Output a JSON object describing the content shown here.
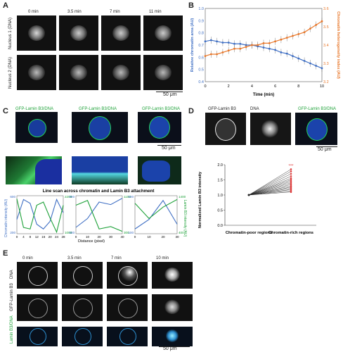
{
  "panels": {
    "a": {
      "letter": "A",
      "time_labels": [
        "0 min",
        "3.5 min",
        "7 min",
        "11 min"
      ],
      "row_labels": [
        "Nucleus 1 (DNA)",
        "Nucleus 2 (DNA)"
      ],
      "scale_bar": "50 μm"
    },
    "b": {
      "letter": "B",
      "xlabel": "Time (min)",
      "ylabel_left": "Relative chromatin area (AU)",
      "ylabel_right": "Chromatin heterogeneity index (AU)",
      "left_ticks": [
        "1.0",
        "0.9",
        "0.8",
        "0.7",
        "0.6",
        "0.5",
        "0.4"
      ],
      "right_ticks": [
        "3.6",
        "3.5",
        "3.4",
        "3.3",
        "3.2"
      ],
      "x_ticks": [
        "0",
        "2",
        "4",
        "6",
        "8",
        "10"
      ],
      "left_color": "#3f6fc4",
      "right_color": "#e8772a"
    },
    "c": {
      "letter": "C",
      "image_labels": [
        "GFP-Lamin B3/DNA",
        "GFP-Lamin B3/DNA",
        "GFP-Lamin B3/DNA"
      ],
      "scale_bar": "50 μm",
      "plot_title": "Line scan across chromatin and Lamin B3 attachment",
      "ylabel_left": "Chromatin intensity (AU)",
      "ylabel_right": "Lamin B3 intensity (AU)",
      "xlabel": "Distance (pixel)",
      "chromatin_color": "#3f6fc4",
      "lamin_color": "#1fa23a"
    },
    "d": {
      "letter": "D",
      "image_labels": [
        "GFP-Lamin B3",
        "DNA",
        "GFP-Lamin B3/DNA"
      ],
      "scale_bar": "50 μm",
      "ylabel": "Normalized Lamin B3 intensity",
      "y_ticks": [
        "2.0",
        "1.5",
        "1.0",
        "0.5",
        "0.0"
      ],
      "categories": [
        "Chromatin-poor regions",
        "Chromatin-rich regions"
      ],
      "significance": "***"
    },
    "e": {
      "letter": "E",
      "time_labels": [
        "0 min",
        "3.5 min",
        "7 min",
        "10 min"
      ],
      "row_labels": [
        "DNA",
        "GFP-Lamin B3",
        "Lamin B3/DNA"
      ],
      "scale_bar": "50 μm"
    }
  },
  "chart_data": [
    {
      "type": "line",
      "title": "",
      "xlabel": "Time (min)",
      "ylabel": "Relative chromatin area (AU)",
      "xlim": [
        0,
        10
      ],
      "ylim": [
        0.4,
        1.0
      ],
      "y2lim": [
        3.2,
        3.6
      ],
      "series": [
        {
          "name": "Relative chromatin area (AU)",
          "axis": "left",
          "x": [
            0,
            0.5,
            1,
            1.5,
            2,
            2.5,
            3,
            3.5,
            4,
            4.5,
            5,
            5.5,
            6,
            6.5,
            7,
            7.5,
            8,
            8.5,
            9,
            9.5,
            10
          ],
          "values": [
            0.73,
            0.74,
            0.73,
            0.72,
            0.72,
            0.71,
            0.71,
            0.7,
            0.7,
            0.69,
            0.68,
            0.67,
            0.66,
            0.64,
            0.63,
            0.61,
            0.59,
            0.57,
            0.55,
            0.53,
            0.51
          ]
        },
        {
          "name": "Chromatin heterogeneity index (AU)",
          "axis": "right",
          "x": [
            0,
            0.5,
            1,
            1.5,
            2,
            2.5,
            3,
            3.5,
            4,
            4.5,
            5,
            5.5,
            6,
            6.5,
            7,
            7.5,
            8,
            8.5,
            9,
            9.5,
            10
          ],
          "values": [
            3.34,
            3.35,
            3.35,
            3.36,
            3.37,
            3.38,
            3.38,
            3.39,
            3.4,
            3.4,
            3.41,
            3.41,
            3.42,
            3.43,
            3.44,
            3.45,
            3.46,
            3.47,
            3.49,
            3.51,
            3.53
          ]
        }
      ]
    },
    {
      "type": "line",
      "title": "Line scan across chromatin and Lamin B3 attachment",
      "xlabel": "Distance (pixel)",
      "panels": [
        {
          "x": [
            0,
            4,
            8,
            12,
            16,
            20,
            24,
            28
          ],
          "y2lim": [
            1000,
            2200
          ],
          "ylim": [
            200,
            600
          ],
          "series": [
            {
              "name": "Chromatin",
              "values": [
                350,
                560,
                520,
                300,
                250,
                330,
                560,
                420
              ]
            },
            {
              "name": "Lamin B3",
              "values": [
                2100,
                1200,
                1150,
                1900,
                2000,
                1500,
                1050,
                1900
              ]
            }
          ]
        },
        {
          "x": [
            0,
            10,
            20,
            30,
            40
          ],
          "ylim": [
            600,
            900
          ],
          "y2lim": [
            300,
            1100
          ],
          "series": [
            {
              "name": "Chromatin",
              "values": [
                650,
                720,
                850,
                830,
                880
              ]
            },
            {
              "name": "Lamin B3",
              "values": [
                900,
                1000,
                400,
                450,
                350
              ]
            }
          ]
        },
        {
          "x": [
            0,
            10,
            20,
            30
          ],
          "ylim": [
            100,
            500
          ],
          "y2lim": [
            400,
            1400
          ],
          "series": [
            {
              "name": "Chromatin",
              "values": [
                150,
                250,
                450,
                200
              ]
            },
            {
              "name": "Lamin B3",
              "values": [
                1200,
                800,
                1100,
                1300
              ]
            }
          ]
        }
      ]
    },
    {
      "type": "scatter",
      "title": "",
      "ylabel": "Normalized Lamin B3 intensity",
      "categories": [
        "Chromatin-poor regions",
        "Chromatin-rich regions"
      ],
      "ylim": [
        0.0,
        2.0
      ],
      "series": [
        {
          "name": "Chromatin-poor regions",
          "values": [
            1.0
          ]
        },
        {
          "name": "Chromatin-rich regions",
          "values": [
            1.85,
            1.78,
            1.7,
            1.62,
            1.55,
            1.5,
            1.45,
            1.4,
            1.35,
            1.3,
            1.26,
            1.22,
            1.18,
            1.14,
            1.1
          ]
        }
      ]
    }
  ]
}
